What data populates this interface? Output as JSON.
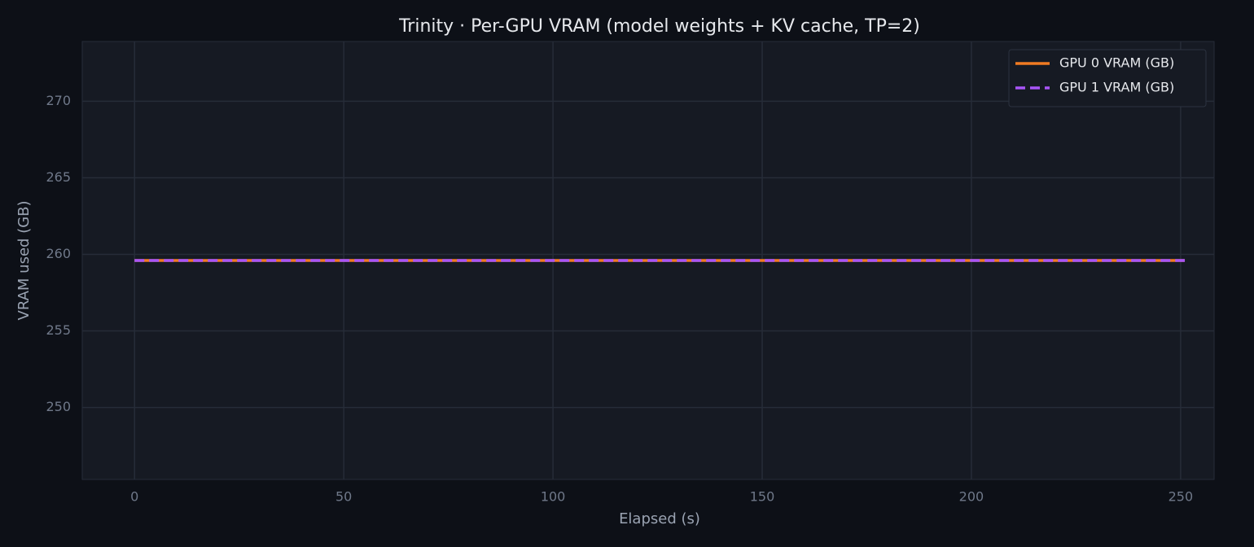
{
  "chart_data": {
    "type": "line",
    "title": "Trinity · Per-GPU VRAM (model weights + KV cache, TP=2)",
    "x_label": "Elapsed (s)",
    "y_label": "VRAM used (GB)",
    "x": [
      0,
      251
    ],
    "series": [
      {
        "name": "GPU 0 VRAM (GB)",
        "color": "#f07b22",
        "dash": "solid",
        "values": [
          259.6,
          259.6
        ]
      },
      {
        "name": "GPU 1 VRAM (GB)",
        "color": "#a855f7",
        "dash": "dashed",
        "values": [
          259.6,
          259.6
        ]
      }
    ],
    "xlim": [
      -12.5,
      258
    ],
    "xticks": [
      0,
      50,
      100,
      150,
      200,
      250
    ],
    "ylim": [
      245.3,
      273.9
    ],
    "yticks": [
      250,
      255,
      260,
      265,
      270
    ],
    "grid": true,
    "legend": "upper right"
  }
}
